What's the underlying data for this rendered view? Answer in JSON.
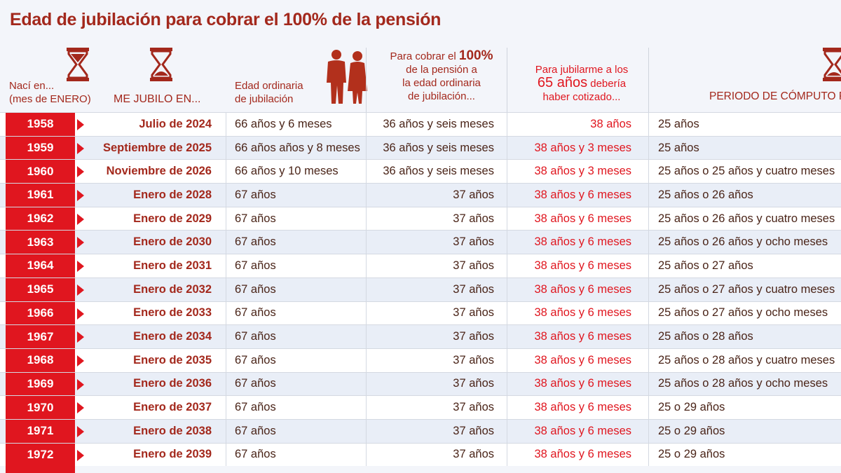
{
  "title": "Edad de jubilación para cobrar el 100% de la pensión",
  "headers": {
    "col1_line1": "Nací en...",
    "col1_line2": "(mes de ENERO)",
    "col2": "ME JUBILO EN...",
    "col3_line1": "Edad ordinaria",
    "col3_line2": "de jubilación",
    "col4_a": "Para cobrar el ",
    "col4_b": "100%",
    "col4_line2": "de la pensión a",
    "col4_line3": "la edad ordinaria",
    "col4_line4": "de jubilación...",
    "col5_line1": "Para jubilarme a los",
    "col5_big": "65 años",
    "col5_small": " debería",
    "col5_line3": "haber cotizado...",
    "col6": "PERIODO DE CÓMPUTO P"
  },
  "colors": {
    "accent": "#e0161f",
    "title": "#a3281c"
  },
  "rows": [
    {
      "year": "1958",
      "retire": "Julio de 2024",
      "age": "66 años y 6 meses",
      "contrib": "36 años y seis meses",
      "at65": "38 años",
      "period": "25 años"
    },
    {
      "year": "1959",
      "retire": "Septiembre de 2025",
      "age": "66 años años y 8 meses",
      "contrib": "36 años y seis meses",
      "at65": "38 años y 3 meses",
      "period": "25 años"
    },
    {
      "year": "1960",
      "retire": "Noviembre de 2026",
      "age": "66 años y 10 meses",
      "contrib": "36 años y seis meses",
      "at65": "38 años y 3 meses",
      "period": "25 años o 25 años y cuatro meses"
    },
    {
      "year": "1961",
      "retire": "Enero de 2028",
      "age": "67 años",
      "contrib": "37 años",
      "at65": "38 años y 6 meses",
      "period": "25 años o 26 años"
    },
    {
      "year": "1962",
      "retire": "Enero de 2029",
      "age": "67 años",
      "contrib": "37 años",
      "at65": "38 años y 6 meses",
      "period": "25 años o 26 años y cuatro meses"
    },
    {
      "year": "1963",
      "retire": "Enero de 2030",
      "age": "67 años",
      "contrib": "37 años",
      "at65": "38 años y 6 meses",
      "period": "25 años o 26 años y ocho meses"
    },
    {
      "year": "1964",
      "retire": "Enero de 2031",
      "age": "67 años",
      "contrib": "37 años",
      "at65": "38 años y 6 meses",
      "period": "25 años o 27 años"
    },
    {
      "year": "1965",
      "retire": "Enero de 2032",
      "age": "67 años",
      "contrib": "37 años",
      "at65": "38 años y 6 meses",
      "period": "25 años o 27 años y cuatro meses"
    },
    {
      "year": "1966",
      "retire": "Enero de 2033",
      "age": "67 años",
      "contrib": "37 años",
      "at65": "38 años y 6 meses",
      "period": "25 años o 27 años y ocho meses"
    },
    {
      "year": "1967",
      "retire": "Enero de 2034",
      "age": "67 años",
      "contrib": "37 años",
      "at65": "38 años y 6 meses",
      "period": "25 años o 28 años"
    },
    {
      "year": "1968",
      "retire": "Enero de 2035",
      "age": "67 años",
      "contrib": "37 años",
      "at65": "38 años y 6 meses",
      "period": "25 años o 28 años y cuatro meses"
    },
    {
      "year": "1969",
      "retire": "Enero de 2036",
      "age": "67 años",
      "contrib": "37 años",
      "at65": "38 años y 6 meses",
      "period": "25 años o 28 años y ocho meses"
    },
    {
      "year": "1970",
      "retire": "Enero de 2037",
      "age": "67 años",
      "contrib": "37 años",
      "at65": "38 años y 6 meses",
      "period": "25 o 29 años"
    },
    {
      "year": "1971",
      "retire": "Enero de 2038",
      "age": "67 años",
      "contrib": "37 años",
      "at65": "38 años y 6 meses",
      "period": "25 o 29 años"
    },
    {
      "year": "1972",
      "retire": "Enero de 2039",
      "age": "67 años",
      "contrib": "37 años",
      "at65": "38 años y 6 meses",
      "period": "25 o 29 años"
    }
  ]
}
